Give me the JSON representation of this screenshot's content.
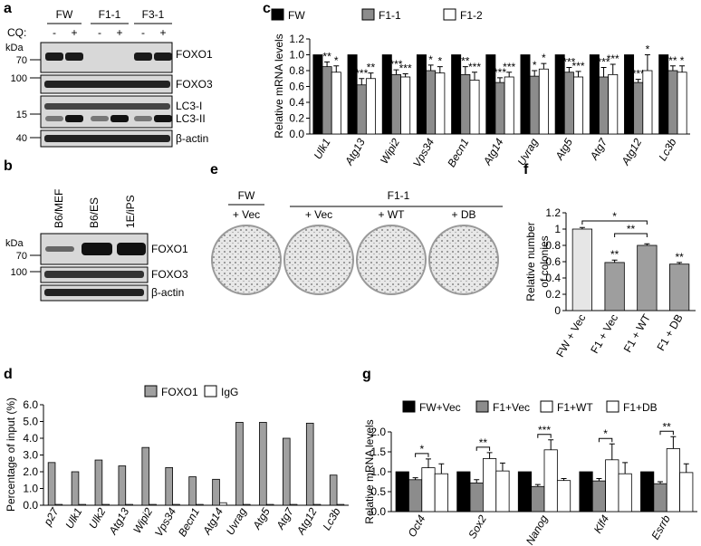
{
  "panels": {
    "a": {
      "label": "a",
      "unit": "kDa",
      "cq": "CQ:",
      "groups": [
        "FW",
        "F1-1",
        "F3-1"
      ],
      "treatments": [
        "-",
        "+",
        "-",
        "+",
        "-",
        "+"
      ],
      "markers": [
        "70",
        "100",
        "15",
        "40"
      ],
      "bands": [
        "FOXO1",
        "FOXO3",
        "LC3-I",
        "LC3-II",
        "β-actin"
      ]
    },
    "b": {
      "label": "b",
      "unit": "kDa",
      "lanes": [
        "B6/MEF",
        "B6/ES",
        "1E/iPS"
      ],
      "markers": [
        "70",
        "100"
      ],
      "bands": [
        "FOXO1",
        "FOXO3",
        "β-actin"
      ]
    },
    "e": {
      "label": "e",
      "groups": [
        "FW",
        "F1-1"
      ],
      "conditions": [
        "+ Vec",
        "+ Vec",
        "+ WT",
        "+ DB"
      ]
    }
  },
  "chart_data": [
    {
      "type": "bar",
      "label": "c",
      "ylabel": "Relative mRNA levels",
      "categories": [
        "Ulk1",
        "Atg13",
        "Wipi2",
        "Vps34",
        "Becn1",
        "Atg14",
        "Uvrag",
        "Atg5",
        "Atg7",
        "Atg12",
        "Lc3b"
      ],
      "series": [
        {
          "name": "FW",
          "color": "#000000",
          "values": [
            1,
            1,
            1,
            1,
            1,
            1,
            1,
            1,
            1,
            1,
            1
          ]
        },
        {
          "name": "F1-1",
          "color": "#8c8c8c",
          "values": [
            0.85,
            0.62,
            0.75,
            0.8,
            0.75,
            0.65,
            0.73,
            0.78,
            0.72,
            0.65,
            0.8
          ],
          "errors": [
            0.06,
            0.08,
            0.06,
            0.07,
            0.1,
            0.06,
            0.07,
            0.06,
            0.12,
            0.04,
            0.06
          ],
          "significance": [
            "**",
            "***",
            "***",
            "*",
            "**",
            "***",
            "*",
            "***",
            "***",
            "***",
            "**"
          ]
        },
        {
          "name": "F1-2",
          "color": "#ffffff",
          "values": [
            0.78,
            0.7,
            0.72,
            0.77,
            0.68,
            0.72,
            0.82,
            0.72,
            0.75,
            0.8,
            0.78
          ],
          "errors": [
            0.08,
            0.07,
            0.04,
            0.08,
            0.1,
            0.06,
            0.07,
            0.07,
            0.13,
            0.2,
            0.08
          ],
          "significance": [
            "*",
            "**",
            "***",
            "*",
            "***",
            "***",
            "*",
            "***",
            "***",
            "*",
            "*"
          ]
        }
      ],
      "ylim": [
        0,
        1.2
      ],
      "yticks": [
        {
          "value": 0,
          "label": "0.0"
        },
        0.2,
        0.4,
        0.6,
        0.8,
        {
          "value": 1,
          "label": "1.0"
        },
        1.2
      ]
    },
    {
      "type": "bar",
      "label": "d",
      "ylabel": "Percentage of input (%)",
      "categories": [
        "p27",
        "Ulk1",
        "Ulk2",
        "Atg13",
        "Wipi2",
        "Vps34",
        "Becn1",
        "Atg14",
        "Uvrag",
        "Atg5",
        "Atg7",
        "Atg12",
        "Lc3b"
      ],
      "series": [
        {
          "name": "FOXO1",
          "color": "#a0a0a0",
          "values": [
            2.55,
            2.0,
            2.7,
            2.35,
            3.45,
            2.25,
            1.7,
            1.55,
            4.95,
            4.95,
            4.0,
            4.9,
            1.8
          ]
        },
        {
          "name": "IgG",
          "color": "#ffffff",
          "values": [
            0.05,
            0.05,
            0.05,
            0.05,
            0.05,
            0.05,
            0.05,
            0.15,
            0.05,
            0.05,
            0.05,
            0.05,
            0.05
          ]
        }
      ],
      "ylim": [
        0,
        6
      ],
      "yticks": [
        {
          "value": 0,
          "label": "0.0"
        },
        {
          "value": 1,
          "label": "1.0"
        },
        {
          "value": 2,
          "label": "2.0"
        },
        {
          "value": 3,
          "label": "3.0"
        },
        {
          "value": 4,
          "label": "4.0"
        },
        {
          "value": 5,
          "label": "5.0"
        },
        {
          "value": 6,
          "label": "6.0"
        }
      ]
    },
    {
      "type": "bar",
      "label": "f",
      "ylabel": [
        "Relative number",
        "of colonies"
      ],
      "categories": [
        "FW + Vec",
        "F1 + Vec",
        "F1 + WT",
        "F1 + DB"
      ],
      "values": [
        1,
        0.59,
        0.8,
        0.57
      ],
      "errors": [
        0.02,
        0.03,
        0.02,
        0.02
      ],
      "colors": [
        "#e6e6e6",
        "#9e9e9e",
        "#9e9e9e",
        "#9e9e9e"
      ],
      "significance": [
        null,
        "**",
        null,
        "**"
      ],
      "comparisons": [
        {
          "label": "*"
        },
        {
          "label": "**"
        }
      ],
      "ylim": [
        0,
        1.2
      ],
      "yticks": [
        0,
        0.2,
        0.4,
        0.6,
        0.8,
        1,
        1.2
      ]
    },
    {
      "type": "bar",
      "label": "g",
      "ylabel": "Relative mRNA levels",
      "categories": [
        "Oct4",
        "Sox2",
        "Nanog",
        "Klf4",
        "Esrrb"
      ],
      "series": [
        {
          "name": "FW+Vec",
          "color": "#000000",
          "values": [
            1,
            1,
            1,
            1,
            1
          ]
        },
        {
          "name": "F1+Vec",
          "color": "#8c8c8c",
          "values": [
            0.8,
            0.72,
            0.63,
            0.77,
            0.7
          ],
          "errors": [
            0.05,
            0.08,
            0.05,
            0.06,
            0.05
          ]
        },
        {
          "name": "F1+WT",
          "color": "#ffffff",
          "values": [
            1.1,
            1.33,
            1.55,
            1.3,
            1.58
          ],
          "errors": [
            0.22,
            0.15,
            0.25,
            0.4,
            0.3
          ]
        },
        {
          "name": "F1+DB",
          "color": "#ffffff",
          "values": [
            0.95,
            1.02,
            0.78,
            0.95,
            0.98
          ],
          "errors": [
            0.25,
            0.2,
            0.05,
            0.28,
            0.22
          ]
        }
      ],
      "significance": [
        "*",
        "**",
        "***",
        "*",
        "**"
      ],
      "ylim": [
        0,
        2
      ],
      "yticks": [
        {
          "value": 0,
          "label": "0.0"
        },
        0.5,
        {
          "value": 1,
          "label": "1.0"
        },
        1.5,
        {
          "value": 2,
          "label": "2.0"
        }
      ]
    }
  ]
}
